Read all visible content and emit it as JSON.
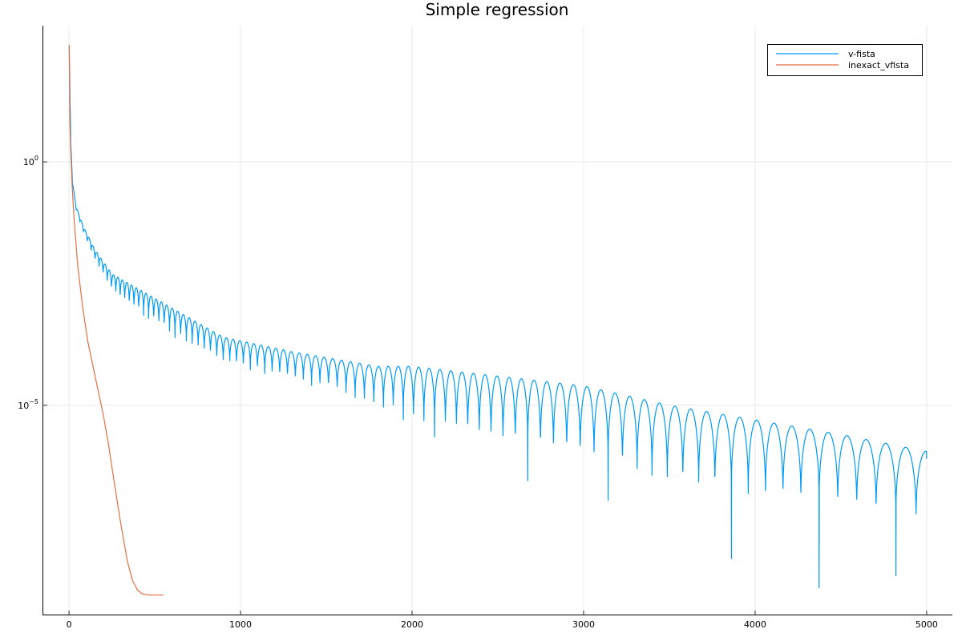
{
  "chart_data": {
    "type": "line",
    "title": "Simple regression",
    "xlabel": "",
    "ylabel": "",
    "xlim": [
      -150,
      5150
    ],
    "ylim_log10": [
      -9.3,
      2.8
    ],
    "yscale": "log",
    "grid": true,
    "legend_position": "top-right",
    "x_ticks": [
      0,
      1000,
      2000,
      3000,
      4000,
      5000
    ],
    "x_tick_labels": [
      "0",
      "1000",
      "2000",
      "3000",
      "4000",
      "5000"
    ],
    "y_ticks_log10": [
      0,
      -5
    ],
    "y_tick_labels": [
      {
        "base": "10",
        "exp": "0"
      },
      {
        "base": "10",
        "exp": "−5"
      }
    ],
    "series": [
      {
        "name": "v-fista",
        "color": "#009af9",
        "pattern": "oscillating",
        "x_range": [
          1,
          5000
        ],
        "envelope_top_log10": [
          [
            1,
            2.4
          ],
          [
            10,
            0.4
          ],
          [
            20,
            -0.4
          ],
          [
            40,
            -0.9
          ],
          [
            80,
            -1.3
          ],
          [
            150,
            -1.8
          ],
          [
            250,
            -2.3
          ],
          [
            400,
            -2.6
          ],
          [
            600,
            -3.0
          ],
          [
            900,
            -3.6
          ],
          [
            1300,
            -3.9
          ],
          [
            1800,
            -4.2
          ],
          [
            2000,
            -4.2
          ],
          [
            2500,
            -4.4
          ],
          [
            3000,
            -4.6
          ],
          [
            3500,
            -5.0
          ],
          [
            4000,
            -5.3
          ],
          [
            4500,
            -5.6
          ],
          [
            5000,
            -5.95
          ]
        ],
        "trough_depth_log10": [
          [
            0,
            0.0
          ],
          [
            100,
            0.2
          ],
          [
            300,
            0.5
          ],
          [
            600,
            0.6
          ],
          [
            1000,
            0.6
          ],
          [
            1500,
            0.7
          ],
          [
            1900,
            1.0
          ],
          [
            2000,
            1.2
          ],
          [
            2500,
            1.5
          ],
          [
            3000,
            1.6
          ],
          [
            3500,
            1.7
          ],
          [
            4000,
            1.7
          ],
          [
            4500,
            1.6
          ],
          [
            5000,
            1.6
          ]
        ],
        "deep_troughs": [
          {
            "x": 1940,
            "log10": -5.3
          },
          {
            "x": 2160,
            "log10": -5.65
          },
          {
            "x": 2660,
            "log10": -6.55
          },
          {
            "x": 3170,
            "log10": -6.95
          },
          {
            "x": 3860,
            "log10": -8.15
          },
          {
            "x": 4380,
            "log10": -8.75
          },
          {
            "x": 4870,
            "log10": -8.5
          }
        ],
        "end_value_log10": -6.1
      },
      {
        "name": "inexact_vfista",
        "color": "#e26f46",
        "points_log10": [
          [
            1,
            2.4
          ],
          [
            5,
            0.8
          ],
          [
            10,
            0.2
          ],
          [
            20,
            -0.6
          ],
          [
            30,
            -1.2
          ],
          [
            50,
            -2.1
          ],
          [
            80,
            -3.0
          ],
          [
            110,
            -3.7
          ],
          [
            140,
            -4.2
          ],
          [
            170,
            -4.7
          ],
          [
            200,
            -5.2
          ],
          [
            230,
            -5.8
          ],
          [
            260,
            -6.5
          ],
          [
            300,
            -7.4
          ],
          [
            340,
            -8.2
          ],
          [
            370,
            -8.6
          ],
          [
            400,
            -8.8
          ],
          [
            430,
            -8.88
          ],
          [
            470,
            -8.9
          ],
          [
            550,
            -8.9
          ]
        ]
      }
    ]
  }
}
